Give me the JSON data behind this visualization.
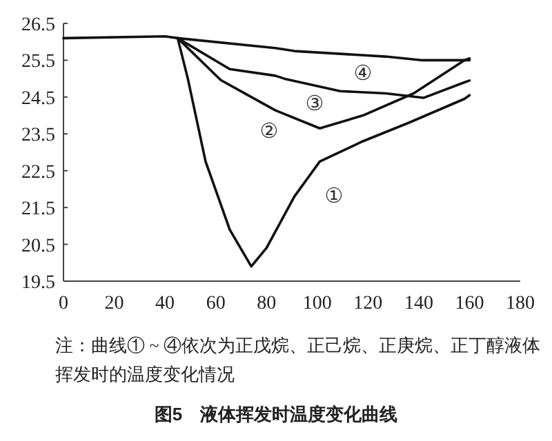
{
  "chart_data": {
    "type": "line",
    "title": "图5　液体挥发时温度变化曲线",
    "xlim": [
      0,
      180
    ],
    "ylim": [
      19.5,
      26.5
    ],
    "xticks": [
      0,
      20,
      40,
      60,
      80,
      100,
      120,
      140,
      160,
      180
    ],
    "yticks": [
      {
        "value": 19.5,
        "label": "19.5"
      },
      {
        "value": 20.5,
        "label": "20.5"
      },
      {
        "value": 21.5,
        "label": "21.5"
      },
      {
        "value": 22.5,
        "label": "22.5"
      },
      {
        "value": 23.5,
        "label": "23.5"
      },
      {
        "value": 24.5,
        "label": "24.5"
      },
      {
        "value": 25.5,
        "label": "25.5"
      },
      {
        "value": 26.5,
        "label": "26.5"
      }
    ],
    "grid": false,
    "line_style": "solid",
    "series": [
      {
        "name": "①",
        "color": "#111111",
        "x": [
          0,
          40,
          45,
          49,
          56,
          65.5,
          74,
          80,
          91,
          101,
          118,
          136,
          158,
          160
        ],
        "values": [
          26.1,
          26.15,
          26.1,
          25.0,
          22.75,
          20.9,
          19.9,
          20.4,
          21.8,
          22.75,
          23.3,
          23.8,
          24.45,
          24.55
        ]
      },
      {
        "name": "②",
        "color": "#111111",
        "x": [
          45,
          62,
          72.7,
          83.5,
          101,
          118,
          138,
          158,
          160
        ],
        "values": [
          26.1,
          24.96,
          24.55,
          24.14,
          23.65,
          24.0,
          24.6,
          25.5,
          25.55
        ]
      },
      {
        "name": "③",
        "color": "#111111",
        "x": [
          45,
          65.5,
          83.5,
          87,
          109,
          127,
          142,
          158,
          160
        ],
        "values": [
          26.1,
          25.26,
          25.08,
          25.0,
          24.66,
          24.6,
          24.48,
          24.9,
          24.95
        ]
      },
      {
        "name": "④",
        "color": "#111111",
        "x": [
          45,
          83.5,
          91,
          127,
          141.5,
          158,
          160
        ],
        "values": [
          26.1,
          25.83,
          25.75,
          25.6,
          25.5,
          25.5,
          25.5
        ]
      }
    ],
    "annotations": [
      "注：曲线① ~ ④依次为正戊烷、正己烷、正庚烷、正丁醇液体挥发时的温度变化情况"
    ]
  }
}
